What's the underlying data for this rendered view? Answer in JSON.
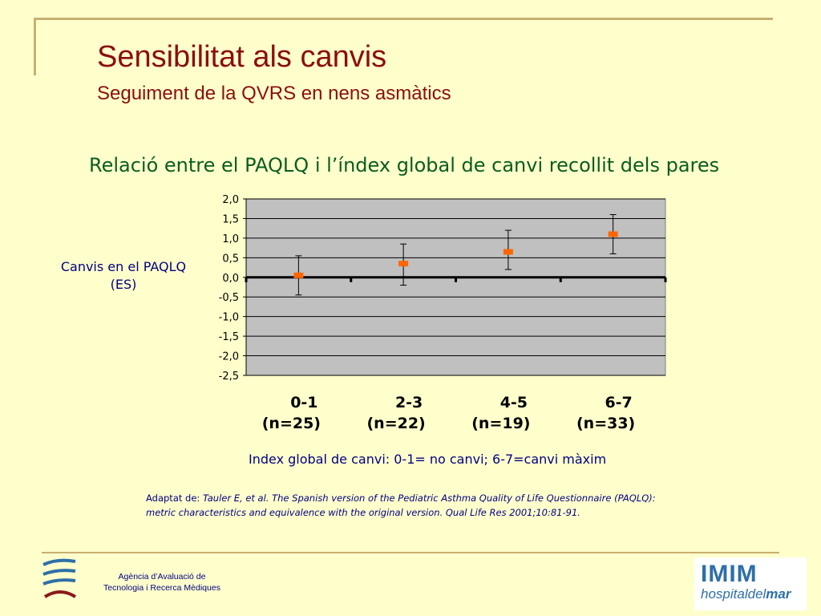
{
  "slide": {
    "title": "Sensibilitat als canvis",
    "subtitle": "Seguiment de la QVRS en nens asmàtics",
    "chart_heading": "Relació entre el PAQLQ i l’índex global de canvi recollit dels pares",
    "y_axis_label_line1": "Canvis en el PAQLQ",
    "y_axis_label_line2": "(ES)",
    "x_axis_note": "Index global de canvi: 0-1= no canvi; 6-7=canvi màxim",
    "source_prefix": "Adaptat de: ",
    "source_line1": "Tauler E, et al. The Spanish version of the Pediatric Asthma Quality of Life Questionnaire (PAQLQ):",
    "source_line2": "metric characteristics and equivalence with the original version. Qual Life Res 2001;10:81-91."
  },
  "footer": {
    "org_line1": "Agència d’Avaluació de",
    "org_line2": "Tecnologia i Recerca Mèdiques",
    "partner_logo_top": "IMIM",
    "partner_logo_bottom_a": "hospital",
    "partner_logo_bottom_b": "del",
    "partner_logo_bottom_c": "mar"
  },
  "colors": {
    "title": "#8b0e0e",
    "heading": "#0a5c1e",
    "text": "#000080",
    "plot_background": "#c0c0c0",
    "marker": "#ff6600",
    "page_background": "#ffffcc",
    "rule": "#c8b070"
  },
  "chart_data": {
    "type": "scatter",
    "categories": [
      "0-1",
      "2-3",
      "4-5",
      "6-7"
    ],
    "category_notes": [
      "(n=25)",
      "(n=22)",
      "(n=19)",
      "(n=33)"
    ],
    "series": [
      {
        "values": [
          0.05,
          0.35,
          0.65,
          1.1
        ],
        "error_low": [
          -0.45,
          -0.2,
          0.2,
          0.6
        ],
        "error_high": [
          0.55,
          0.85,
          1.2,
          1.6
        ]
      }
    ],
    "yticks": [
      "2,0",
      "1,5",
      "1,0",
      "0,5",
      "0,0",
      "-0,5",
      "-1,0",
      "-1,5",
      "-2,0",
      "-2,5"
    ],
    "ylim": [
      -2.5,
      2.0
    ],
    "grid": true,
    "error_bars": true
  }
}
